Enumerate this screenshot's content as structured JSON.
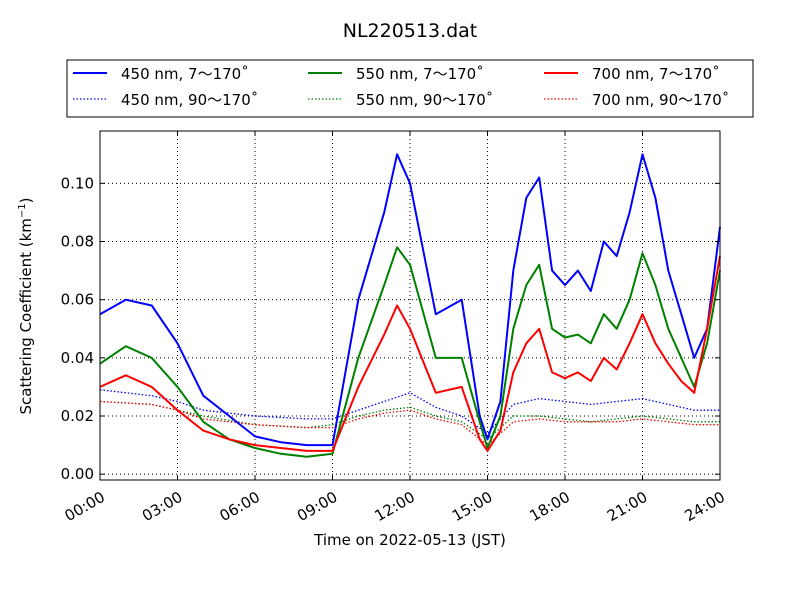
{
  "chart_data": {
    "type": "line",
    "title": "NL220513.dat",
    "xlabel": "Time on 2022-05-13 (JST)",
    "ylabel_main": "Scattering Coefficient (km",
    "ylabel_exp": "−1",
    "ylabel_close": ")",
    "xlim": [
      0,
      24
    ],
    "ylim": [
      -0.002,
      0.118
    ],
    "x_ticks": [
      0,
      3,
      6,
      9,
      12,
      15,
      18,
      21,
      24
    ],
    "x_tick_labels": [
      "00:00",
      "03:00",
      "06:00",
      "09:00",
      "12:00",
      "15:00",
      "18:00",
      "21:00",
      "24:00"
    ],
    "y_ticks": [
      0.0,
      0.02,
      0.04,
      0.06,
      0.08,
      0.1
    ],
    "y_tick_labels": [
      "0.00",
      "0.02",
      "0.04",
      "0.06",
      "0.08",
      "0.10"
    ],
    "grid": true,
    "legend_position": "top, above plot",
    "series": [
      {
        "name": "450 nm, 7～170˚",
        "color": "#0000ff",
        "style": "solid",
        "x": [
          0,
          1,
          2,
          3,
          4,
          5,
          6,
          7,
          8,
          9,
          10,
          11,
          11.5,
          12,
          13,
          14,
          14.7,
          15,
          15.5,
          16,
          16.5,
          17,
          17.5,
          18,
          18.5,
          19,
          19.5,
          20,
          20.5,
          21,
          21.5,
          22,
          22.5,
          23,
          23.5,
          24
        ],
        "y": [
          0.055,
          0.06,
          0.058,
          0.045,
          0.027,
          0.02,
          0.013,
          0.011,
          0.01,
          0.01,
          0.06,
          0.09,
          0.11,
          0.1,
          0.055,
          0.06,
          0.02,
          0.012,
          0.025,
          0.07,
          0.095,
          0.102,
          0.07,
          0.065,
          0.07,
          0.063,
          0.08,
          0.075,
          0.09,
          0.11,
          0.095,
          0.07,
          0.055,
          0.04,
          0.05,
          0.085
        ]
      },
      {
        "name": "450 nm, 90～170˚",
        "color": "#0000ff",
        "style": "dotted",
        "x": [
          0,
          2,
          3,
          4,
          6,
          8,
          9,
          10,
          11,
          12,
          13,
          14,
          15,
          16,
          17,
          18,
          19,
          20,
          21,
          22,
          23,
          24
        ],
        "y": [
          0.029,
          0.027,
          0.025,
          0.022,
          0.02,
          0.019,
          0.019,
          0.022,
          0.025,
          0.028,
          0.023,
          0.02,
          0.014,
          0.024,
          0.026,
          0.025,
          0.024,
          0.025,
          0.026,
          0.024,
          0.022,
          0.022
        ]
      },
      {
        "name": "550 nm, 7～170˚",
        "color": "#008000",
        "style": "solid",
        "x": [
          0,
          1,
          2,
          3,
          4,
          5,
          6,
          7,
          8,
          9,
          10,
          11,
          11.5,
          12,
          13,
          14,
          14.7,
          15,
          15.5,
          16,
          16.5,
          17,
          17.5,
          18,
          18.5,
          19,
          19.5,
          20,
          20.5,
          21,
          21.5,
          22,
          22.5,
          23,
          23.5,
          24
        ],
        "y": [
          0.038,
          0.044,
          0.04,
          0.03,
          0.018,
          0.012,
          0.009,
          0.007,
          0.006,
          0.007,
          0.04,
          0.065,
          0.078,
          0.072,
          0.04,
          0.04,
          0.018,
          0.009,
          0.02,
          0.05,
          0.065,
          0.072,
          0.05,
          0.047,
          0.048,
          0.045,
          0.055,
          0.05,
          0.06,
          0.076,
          0.065,
          0.05,
          0.04,
          0.03,
          0.045,
          0.07
        ]
      },
      {
        "name": "550 nm, 90～170˚",
        "color": "#008000",
        "style": "dotted",
        "x": [
          0,
          2,
          3,
          4,
          6,
          8,
          9,
          10,
          11,
          12,
          13,
          14,
          15,
          16,
          17,
          18,
          19,
          20,
          21,
          22,
          23,
          24
        ],
        "y": [
          0.025,
          0.024,
          0.022,
          0.02,
          0.017,
          0.016,
          0.017,
          0.02,
          0.022,
          0.023,
          0.02,
          0.018,
          0.012,
          0.02,
          0.02,
          0.019,
          0.018,
          0.019,
          0.02,
          0.019,
          0.018,
          0.018
        ]
      },
      {
        "name": "700 nm, 7～170˚",
        "color": "#ff0000",
        "style": "solid",
        "x": [
          0,
          1,
          2,
          3,
          4,
          5,
          6,
          7,
          8,
          9,
          10,
          11,
          11.5,
          12,
          13,
          14,
          14.7,
          15,
          15.5,
          16,
          16.5,
          17,
          17.5,
          18,
          18.5,
          19,
          19.5,
          20,
          20.5,
          21,
          21.5,
          22,
          22.5,
          23,
          23.5,
          24
        ],
        "y": [
          0.03,
          0.034,
          0.03,
          0.022,
          0.015,
          0.012,
          0.01,
          0.009,
          0.008,
          0.008,
          0.03,
          0.048,
          0.058,
          0.05,
          0.028,
          0.03,
          0.012,
          0.008,
          0.015,
          0.035,
          0.045,
          0.05,
          0.035,
          0.033,
          0.035,
          0.032,
          0.04,
          0.036,
          0.045,
          0.055,
          0.045,
          0.038,
          0.032,
          0.028,
          0.05,
          0.075
        ]
      },
      {
        "name": "700 nm, 90～170˚",
        "color": "#ff0000",
        "style": "dotted",
        "x": [
          0,
          2,
          3,
          4,
          6,
          8,
          9,
          10,
          11,
          12,
          13,
          14,
          15,
          16,
          17,
          18,
          19,
          20,
          21,
          22,
          23,
          24
        ],
        "y": [
          0.025,
          0.024,
          0.022,
          0.019,
          0.017,
          0.016,
          0.016,
          0.019,
          0.021,
          0.022,
          0.019,
          0.017,
          0.01,
          0.018,
          0.019,
          0.018,
          0.018,
          0.018,
          0.019,
          0.018,
          0.017,
          0.017
        ]
      }
    ]
  }
}
